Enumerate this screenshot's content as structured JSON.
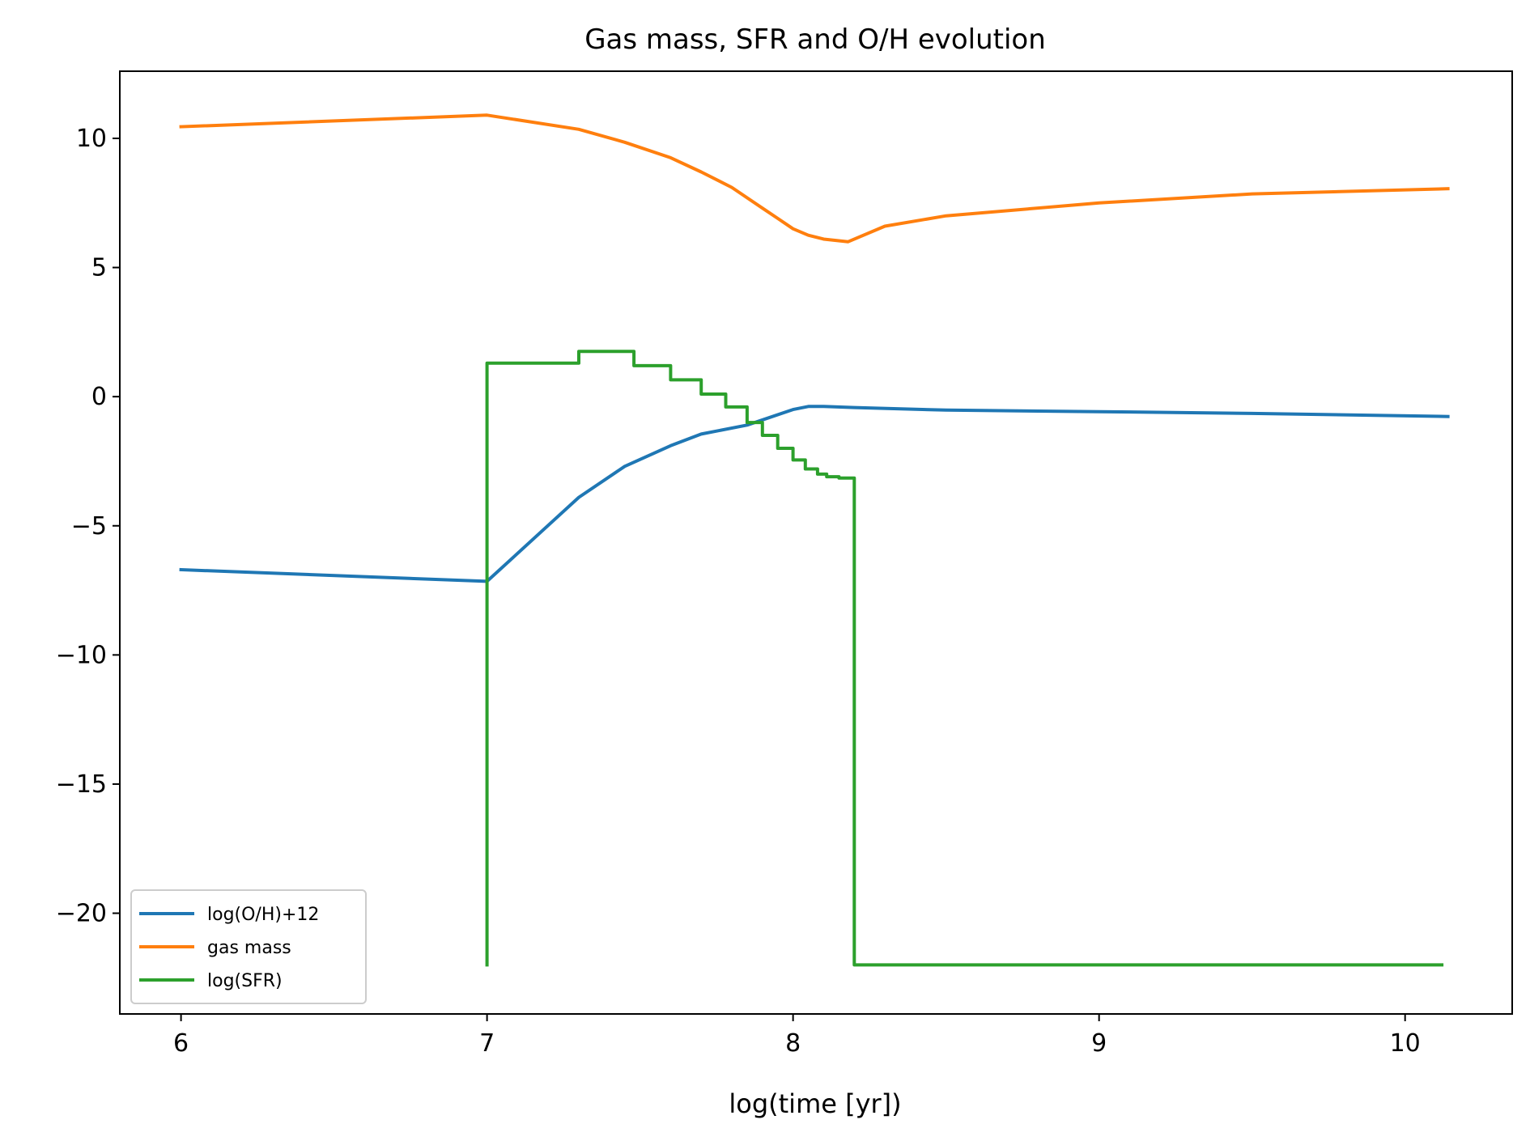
{
  "chart_data": {
    "type": "line",
    "title": "Gas mass, SFR and O/H evolution",
    "xlabel": "log(time [yr])",
    "ylabel": "",
    "xlim": [
      5.8,
      10.35
    ],
    "ylim": [
      -23.9,
      12.6
    ],
    "xticks": [
      {
        "value": 6,
        "label": "6"
      },
      {
        "value": 7,
        "label": "7"
      },
      {
        "value": 8,
        "label": "8"
      },
      {
        "value": 9,
        "label": "9"
      },
      {
        "value": 10,
        "label": "10"
      }
    ],
    "yticks": [
      {
        "value": 10,
        "label": "10"
      },
      {
        "value": 5,
        "label": "5"
      },
      {
        "value": 0,
        "label": "0"
      },
      {
        "value": -5,
        "label": "−5"
      },
      {
        "value": -10,
        "label": "−10"
      },
      {
        "value": -15,
        "label": "−15"
      },
      {
        "value": -20,
        "label": "−20"
      }
    ],
    "grid": false,
    "legend_position": "lower-left",
    "series": [
      {
        "name": "log(O/H)+12",
        "color": "#1f77b4",
        "x": [
          6.0,
          7.0,
          7.3,
          7.45,
          7.6,
          7.7,
          7.85,
          8.0,
          8.05,
          8.1,
          8.2,
          8.5,
          9.0,
          9.5,
          10.14
        ],
        "y": [
          -6.7,
          -7.15,
          -3.9,
          -2.7,
          -1.9,
          -1.45,
          -1.1,
          -0.5,
          -0.38,
          -0.38,
          -0.42,
          -0.52,
          -0.58,
          -0.65,
          -0.77
        ]
      },
      {
        "name": "gas mass",
        "color": "#ff7f0e",
        "x": [
          6.0,
          7.0,
          7.3,
          7.45,
          7.6,
          7.7,
          7.8,
          7.9,
          7.95,
          8.0,
          8.05,
          8.1,
          8.18,
          8.3,
          8.5,
          9.0,
          9.5,
          10.14
        ],
        "y": [
          10.45,
          10.9,
          10.35,
          9.85,
          9.25,
          8.7,
          8.1,
          7.3,
          6.9,
          6.5,
          6.25,
          6.1,
          6.0,
          6.6,
          7.0,
          7.5,
          7.85,
          8.05
        ]
      },
      {
        "name": "log(SFR)",
        "color": "#2ca02c",
        "x": [
          7.0,
          7.0,
          7.3,
          7.3,
          7.48,
          7.48,
          7.6,
          7.6,
          7.7,
          7.7,
          7.78,
          7.78,
          7.85,
          7.85,
          7.9,
          7.9,
          7.95,
          7.95,
          8.0,
          8.0,
          8.04,
          8.04,
          8.08,
          8.08,
          8.11,
          8.11,
          8.15,
          8.15,
          8.2,
          8.2,
          10.12
        ],
        "y": [
          -22.0,
          1.3,
          1.3,
          1.75,
          1.75,
          1.2,
          1.2,
          0.65,
          0.65,
          0.1,
          0.1,
          -0.4,
          -0.4,
          -1.0,
          -1.0,
          -1.5,
          -1.5,
          -2.0,
          -2.0,
          -2.45,
          -2.45,
          -2.8,
          -2.8,
          -3.0,
          -3.0,
          -3.1,
          -3.1,
          -3.15,
          -3.15,
          -22.0,
          -22.0
        ]
      }
    ]
  }
}
